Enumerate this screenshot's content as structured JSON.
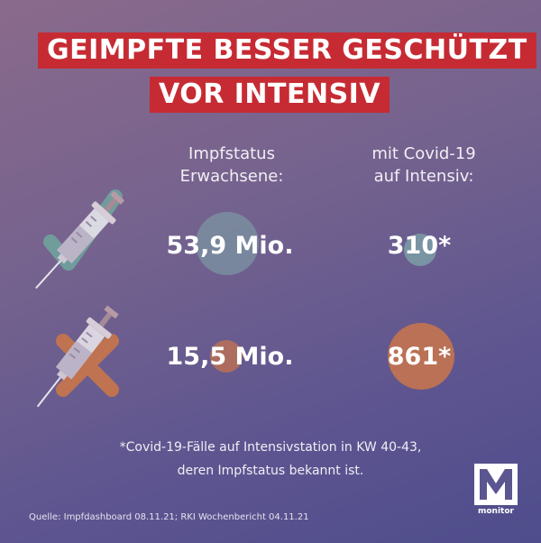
{
  "title": {
    "line1": "GEIMPFTE BESSER GESCHÜTZT",
    "line2": "VOR INTENSIV"
  },
  "columns": {
    "left_header": [
      "Impfstatus",
      "Erwachsene:"
    ],
    "right_header": [
      "mit Covid-19",
      "auf Intensiv:"
    ]
  },
  "rows": [
    {
      "status": "vaccinated",
      "adults": "53,9 Mio.",
      "icu": "310*",
      "icon": "syringe-with-check-icon"
    },
    {
      "status": "unvaccinated",
      "adults": "15,5 Mio.",
      "icu": "861*",
      "icon": "syringe-with-cross-icon"
    }
  ],
  "footnote": {
    "line1": "*Covid-19-Fälle auf Intensivstation in KW 40-43,",
    "line2": "deren Impfstatus bekannt ist."
  },
  "source": "Quelle: Impfdashboard 08.11.21; RKI Wochenbericht 04.11.21",
  "logo": {
    "letter": "M",
    "label": "monitor"
  },
  "colors": {
    "title_bg": "#c62b33",
    "vaccinated_bubble": "#7fa7a9",
    "unvaccinated_bubble": "#c4744f",
    "background_top": "#8a6a8c",
    "background_bottom": "#4f4d8c"
  }
}
